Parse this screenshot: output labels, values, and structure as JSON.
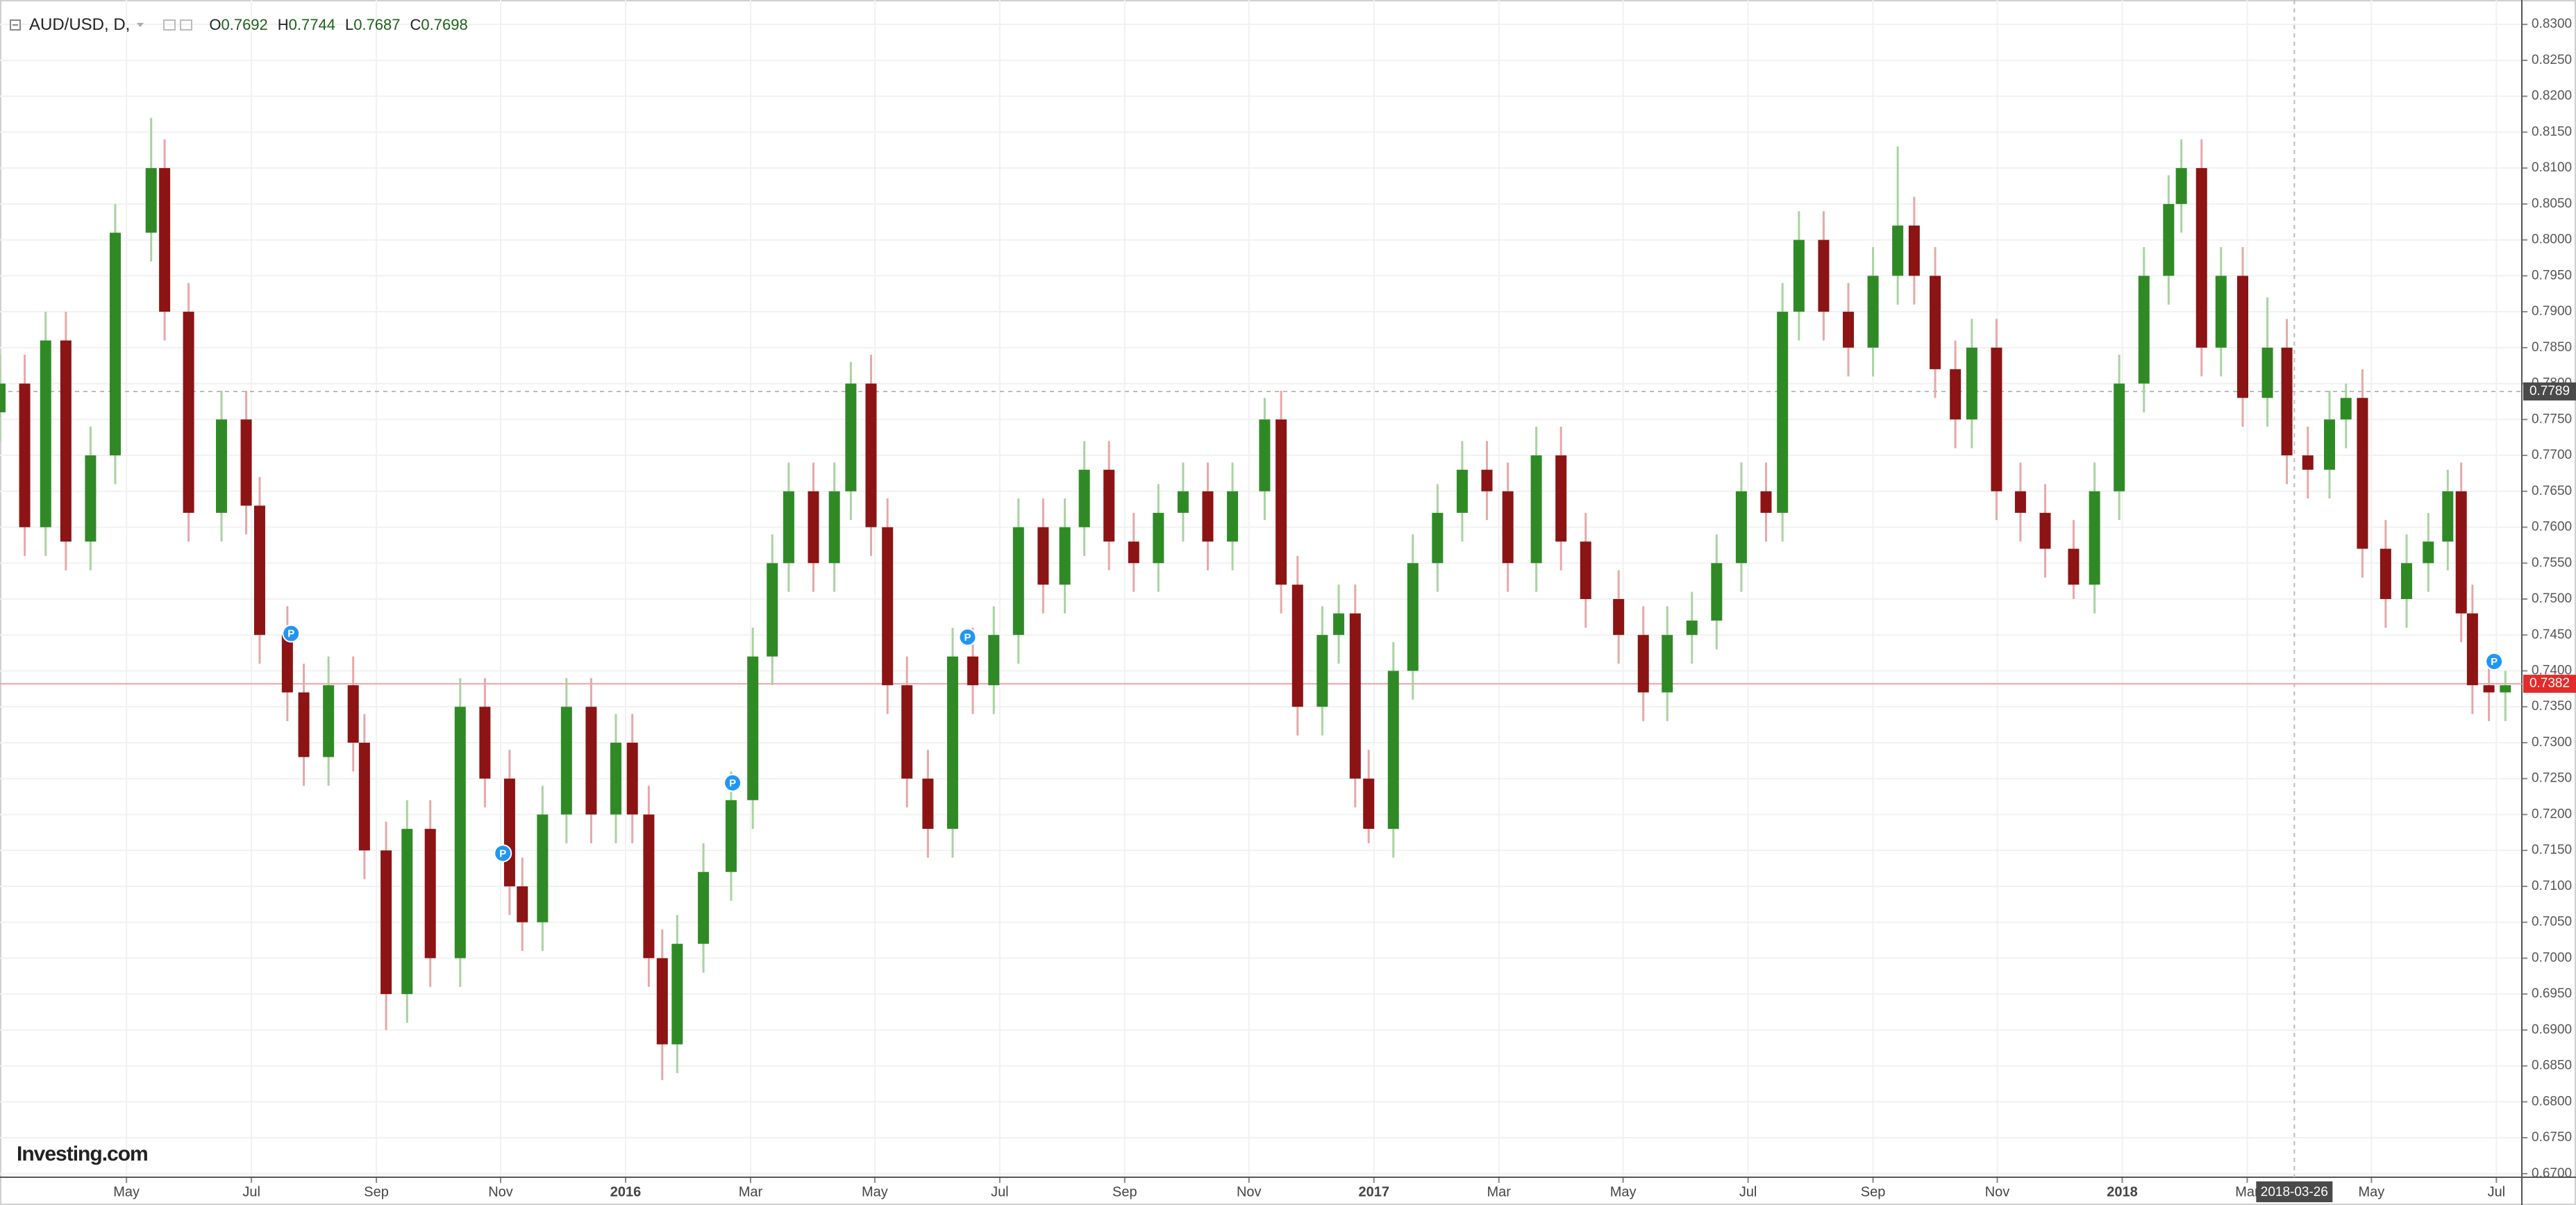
{
  "chart_data": {
    "type": "candlestick",
    "symbol": "AUD/USD, D,",
    "ohlc_legend": [
      {
        "label": "O",
        "value": 0.7692
      },
      {
        "label": "H",
        "value": 0.7744
      },
      {
        "label": "L",
        "value": 0.7687
      },
      {
        "label": "C",
        "value": 0.7698
      }
    ],
    "logo": "Investing.com",
    "up_color": "#2f8a26",
    "down_color": "#8c1414",
    "grid": true,
    "xlim": [
      2015.164,
      2018.534
    ],
    "ylim": [
      0.6695,
      0.8334
    ],
    "xticks": [
      {
        "value": 2015.333,
        "label": "May"
      },
      {
        "value": 2015.5,
        "label": "Jul"
      },
      {
        "value": 2015.667,
        "label": "Sep"
      },
      {
        "value": 2015.833,
        "label": "Nov"
      },
      2016,
      {
        "value": 2016.167,
        "label": "Mar"
      },
      {
        "value": 2016.333,
        "label": "May"
      },
      {
        "value": 2016.5,
        "label": "Jul"
      },
      {
        "value": 2016.667,
        "label": "Sep"
      },
      {
        "value": 2016.833,
        "label": "Nov"
      },
      2017,
      {
        "value": 2017.167,
        "label": "Mar"
      },
      {
        "value": 2017.333,
        "label": "May"
      },
      {
        "value": 2017.5,
        "label": "Jul"
      },
      {
        "value": 2017.667,
        "label": "Sep"
      },
      {
        "value": 2017.833,
        "label": "Nov"
      },
      2018,
      {
        "value": 2018.167,
        "label": "Mar"
      },
      {
        "value": 2018.333,
        "label": "May"
      },
      {
        "value": 2018.5,
        "label": "Jul"
      }
    ],
    "yticks": [
      {
        "value": 0.67,
        "label": "0.6700"
      },
      {
        "value": 0.675,
        "label": "0.6750"
      },
      {
        "value": 0.68,
        "label": "0.6800"
      },
      {
        "value": 0.685,
        "label": "0.6850"
      },
      {
        "value": 0.69,
        "label": "0.6900"
      },
      {
        "value": 0.695,
        "label": "0.6950"
      },
      {
        "value": 0.7,
        "label": "0.7000"
      },
      {
        "value": 0.705,
        "label": "0.7050"
      },
      {
        "value": 0.71,
        "label": "0.7100"
      },
      {
        "value": 0.715,
        "label": "0.7150"
      },
      {
        "value": 0.72,
        "label": "0.7200"
      },
      {
        "value": 0.725,
        "label": "0.7250"
      },
      {
        "value": 0.73,
        "label": "0.7300"
      },
      {
        "value": 0.735,
        "label": "0.7350"
      },
      {
        "value": 0.74,
        "label": "0.7400"
      },
      {
        "value": 0.745,
        "label": "0.7450"
      },
      {
        "value": 0.75,
        "label": "0.7500"
      },
      {
        "value": 0.755,
        "label": "0.7550"
      },
      {
        "value": 0.76,
        "label": "0.7600"
      },
      {
        "value": 0.765,
        "label": "0.7650"
      },
      {
        "value": 0.77,
        "label": "0.7700"
      },
      {
        "value": 0.775,
        "label": "0.7750"
      },
      {
        "value": 0.78,
        "label": "0.7800"
      },
      {
        "value": 0.785,
        "label": "0.7850"
      },
      {
        "value": 0.79,
        "label": "0.7900"
      },
      {
        "value": 0.795,
        "label": "0.7950"
      },
      {
        "value": 0.8,
        "label": "0.8000"
      },
      {
        "value": 0.805,
        "label": "0.8050"
      },
      {
        "value": 0.81,
        "label": "0.8100"
      },
      {
        "value": 0.815,
        "label": "0.8150"
      },
      {
        "value": 0.82,
        "label": "0.8200"
      },
      {
        "value": 0.825,
        "label": "0.8250"
      },
      {
        "value": 0.83,
        "label": "0.8300"
      }
    ],
    "x": [
      2015.164,
      2015.197,
      2015.225,
      2015.252,
      2015.285,
      2015.318,
      2015.366,
      2015.384,
      2015.416,
      2015.46,
      2015.493,
      2015.511,
      2015.548,
      2015.57,
      2015.603,
      2015.636,
      2015.651,
      2015.68,
      2015.708,
      2015.739,
      2015.779,
      2015.812,
      2015.845,
      2015.862,
      2015.889,
      2015.921,
      2015.954,
      2015.987,
      2016.009,
      2016.031,
      2016.049,
      2016.069,
      2016.104,
      2016.141,
      2016.17,
      2016.196,
      2016.218,
      2016.251,
      2016.279,
      2016.301,
      2016.328,
      2016.35,
      2016.376,
      2016.404,
      2016.437,
      2016.464,
      2016.492,
      2016.525,
      2016.558,
      2016.587,
      2016.613,
      2016.646,
      2016.679,
      2016.712,
      2016.745,
      2016.778,
      2016.811,
      2016.854,
      2016.876,
      2016.898,
      2016.931,
      2016.953,
      2016.975,
      2016.993,
      2017.026,
      2017.052,
      2017.085,
      2017.118,
      2017.151,
      2017.179,
      2017.217,
      2017.25,
      2017.283,
      2017.327,
      2017.36,
      2017.392,
      2017.425,
      2017.458,
      2017.491,
      2017.524,
      2017.546,
      2017.568,
      2017.601,
      2017.634,
      2017.667,
      2017.7,
      2017.722,
      2017.75,
      2017.777,
      2017.799,
      2017.832,
      2017.864,
      2017.897,
      2017.935,
      2017.963,
      2017.996,
      2018.029,
      2018.062,
      2018.079,
      2018.106,
      2018.132,
      2018.161,
      2018.194,
      2018.22,
      2018.248,
      2018.277,
      2018.299,
      2018.321,
      2018.352,
      2018.38,
      2018.409,
      2018.435,
      2018.453,
      2018.468,
      2018.49,
      2018.512
    ],
    "open": [
      0.776,
      0.78,
      0.76,
      0.786,
      0.758,
      0.77,
      0.801,
      0.81,
      0.79,
      0.762,
      0.775,
      0.763,
      0.745,
      0.737,
      0.728,
      0.738,
      0.73,
      0.715,
      0.695,
      0.718,
      0.7,
      0.735,
      0.725,
      0.71,
      0.705,
      0.72,
      0.735,
      0.72,
      0.73,
      0.72,
      0.7,
      0.688,
      0.702,
      0.712,
      0.722,
      0.742,
      0.755,
      0.765,
      0.755,
      0.765,
      0.78,
      0.76,
      0.738,
      0.725,
      0.718,
      0.742,
      0.738,
      0.745,
      0.76,
      0.752,
      0.76,
      0.768,
      0.758,
      0.755,
      0.762,
      0.765,
      0.758,
      0.765,
      0.775,
      0.752,
      0.735,
      0.745,
      0.748,
      0.725,
      0.718,
      0.74,
      0.755,
      0.762,
      0.768,
      0.765,
      0.755,
      0.77,
      0.758,
      0.75,
      0.745,
      0.737,
      0.745,
      0.747,
      0.755,
      0.765,
      0.762,
      0.79,
      0.8,
      0.79,
      0.785,
      0.795,
      0.802,
      0.795,
      0.782,
      0.775,
      0.785,
      0.765,
      0.762,
      0.757,
      0.752,
      0.765,
      0.78,
      0.795,
      0.805,
      0.81,
      0.785,
      0.795,
      0.778,
      0.785,
      0.77,
      0.768,
      0.775,
      0.778,
      0.757,
      0.75,
      0.755,
      0.758,
      0.765,
      0.748,
      0.738,
      0.737
    ],
    "high": [
      0.784,
      0.784,
      0.79,
      0.79,
      0.774,
      0.805,
      0.817,
      0.814,
      0.794,
      0.779,
      0.779,
      0.767,
      0.749,
      0.741,
      0.742,
      0.742,
      0.734,
      0.719,
      0.722,
      0.722,
      0.739,
      0.739,
      0.729,
      0.714,
      0.724,
      0.739,
      0.739,
      0.734,
      0.734,
      0.724,
      0.704,
      0.706,
      0.716,
      0.726,
      0.746,
      0.759,
      0.769,
      0.769,
      0.769,
      0.783,
      0.784,
      0.764,
      0.742,
      0.729,
      0.746,
      0.746,
      0.749,
      0.764,
      0.764,
      0.764,
      0.772,
      0.772,
      0.762,
      0.766,
      0.769,
      0.769,
      0.769,
      0.778,
      0.779,
      0.756,
      0.749,
      0.752,
      0.752,
      0.729,
      0.744,
      0.759,
      0.766,
      0.772,
      0.772,
      0.769,
      0.774,
      0.774,
      0.762,
      0.754,
      0.749,
      0.749,
      0.751,
      0.759,
      0.769,
      0.769,
      0.794,
      0.804,
      0.804,
      0.794,
      0.799,
      0.813,
      0.806,
      0.799,
      0.786,
      0.789,
      0.789,
      0.769,
      0.766,
      0.761,
      0.769,
      0.784,
      0.799,
      0.809,
      0.814,
      0.814,
      0.799,
      0.799,
      0.792,
      0.789,
      0.774,
      0.779,
      0.78,
      0.782,
      0.761,
      0.759,
      0.762,
      0.768,
      0.769,
      0.752,
      0.742,
      0.74
    ],
    "low": [
      0.772,
      0.756,
      0.756,
      0.754,
      0.754,
      0.766,
      0.797,
      0.786,
      0.758,
      0.758,
      0.759,
      0.741,
      0.733,
      0.724,
      0.724,
      0.726,
      0.711,
      0.69,
      0.691,
      0.696,
      0.696,
      0.721,
      0.706,
      0.701,
      0.701,
      0.716,
      0.716,
      0.716,
      0.716,
      0.696,
      0.683,
      0.684,
      0.698,
      0.708,
      0.718,
      0.738,
      0.751,
      0.751,
      0.751,
      0.761,
      0.756,
      0.734,
      0.721,
      0.714,
      0.714,
      0.734,
      0.734,
      0.741,
      0.748,
      0.748,
      0.756,
      0.754,
      0.751,
      0.751,
      0.758,
      0.754,
      0.754,
      0.761,
      0.748,
      0.731,
      0.731,
      0.741,
      0.721,
      0.716,
      0.714,
      0.736,
      0.751,
      0.758,
      0.761,
      0.751,
      0.751,
      0.754,
      0.746,
      0.741,
      0.733,
      0.733,
      0.741,
      0.743,
      0.751,
      0.758,
      0.758,
      0.786,
      0.786,
      0.781,
      0.781,
      0.791,
      0.791,
      0.778,
      0.771,
      0.771,
      0.761,
      0.758,
      0.753,
      0.75,
      0.748,
      0.761,
      0.776,
      0.791,
      0.801,
      0.781,
      0.781,
      0.774,
      0.774,
      0.766,
      0.764,
      0.764,
      0.771,
      0.753,
      0.746,
      0.746,
      0.751,
      0.754,
      0.744,
      0.734,
      0.733,
      0.733
    ],
    "close": [
      0.78,
      0.76,
      0.786,
      0.758,
      0.77,
      0.801,
      0.81,
      0.79,
      0.762,
      0.775,
      0.763,
      0.745,
      0.737,
      0.728,
      0.738,
      0.73,
      0.715,
      0.695,
      0.718,
      0.7,
      0.735,
      0.725,
      0.71,
      0.705,
      0.72,
      0.735,
      0.72,
      0.73,
      0.72,
      0.7,
      0.688,
      0.702,
      0.712,
      0.722,
      0.742,
      0.755,
      0.765,
      0.755,
      0.765,
      0.78,
      0.76,
      0.738,
      0.725,
      0.718,
      0.742,
      0.738,
      0.745,
      0.76,
      0.752,
      0.76,
      0.768,
      0.758,
      0.755,
      0.762,
      0.765,
      0.758,
      0.765,
      0.775,
      0.752,
      0.735,
      0.745,
      0.748,
      0.725,
      0.718,
      0.74,
      0.755,
      0.762,
      0.768,
      0.765,
      0.755,
      0.77,
      0.758,
      0.75,
      0.745,
      0.737,
      0.745,
      0.747,
      0.755,
      0.765,
      0.762,
      0.79,
      0.8,
      0.79,
      0.785,
      0.795,
      0.802,
      0.795,
      0.782,
      0.775,
      0.785,
      0.765,
      0.762,
      0.757,
      0.752,
      0.765,
      0.78,
      0.795,
      0.805,
      0.81,
      0.785,
      0.795,
      0.778,
      0.785,
      0.77,
      0.768,
      0.775,
      0.778,
      0.757,
      0.75,
      0.755,
      0.758,
      0.765,
      0.748,
      0.738,
      0.737,
      0.738
    ],
    "event_markers": [
      {
        "x": 2015.553,
        "price": 0.7452,
        "label": "P"
      },
      {
        "x": 2015.836,
        "price": 0.7146,
        "label": "P"
      },
      {
        "x": 2016.143,
        "price": 0.7244,
        "label": "P"
      },
      {
        "x": 2016.457,
        "price": 0.7447,
        "label": "P"
      },
      {
        "x": 2018.497,
        "price": 0.7413,
        "label": "P"
      }
    ],
    "crosshair": {
      "x": 2018.23,
      "x_label": "2018-03-26",
      "price": 0.7789
    },
    "last_price": 0.7382
  }
}
